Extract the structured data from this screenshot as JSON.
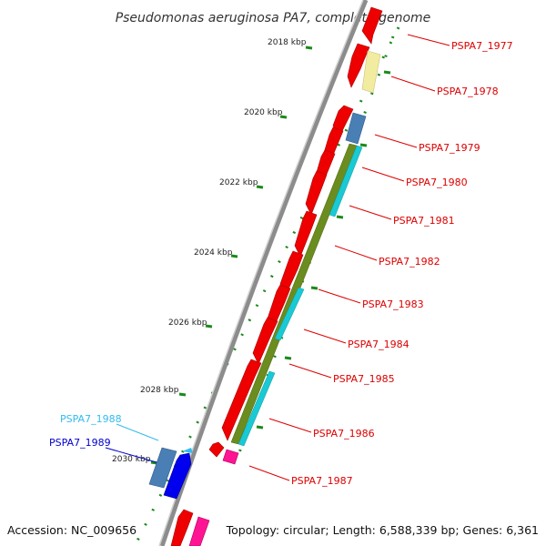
{
  "title": "Pseudomonas aeruginosa PA7, complete genome",
  "footer": {
    "accession": "Accession: NC_009656",
    "topology": "Topology: circular; Length: 6,588,339 bp; Genes: 6,361"
  },
  "colors": {
    "backbone": "#8c8c8c",
    "forward_gene": "#ee0000",
    "reverse_blue": "#4a7fb5",
    "yellow_gene": "#f2eca0",
    "cyan_feature": "#19c9d4",
    "olive_feature": "#6b8c1e",
    "magenta_gene": "#ff1493",
    "tick_green": "#1a8a1a",
    "label_red": "#dd0000",
    "label_cyan": "#33bbee",
    "label_blue": "#0000cc"
  },
  "ruler": [
    {
      "label": "2018 kbp"
    },
    {
      "label": "2020 kbp"
    },
    {
      "label": "2022 kbp"
    },
    {
      "label": "2024 kbp"
    },
    {
      "label": "2026 kbp"
    },
    {
      "label": "2028 kbp"
    },
    {
      "label": "2030 kbp"
    }
  ],
  "labels": {
    "g1977": "PSPA7_1977",
    "g1978": "PSPA7_1978",
    "g1979": "PSPA7_1979",
    "g1980": "PSPA7_1980",
    "g1981": "PSPA7_1981",
    "g1982": "PSPA7_1982",
    "g1983": "PSPA7_1983",
    "g1984": "PSPA7_1984",
    "g1985": "PSPA7_1985",
    "g1986": "PSPA7_1986",
    "g1987": "PSPA7_1987",
    "g1988": "PSPA7_1988",
    "g1989": "PSPA7_1989"
  }
}
